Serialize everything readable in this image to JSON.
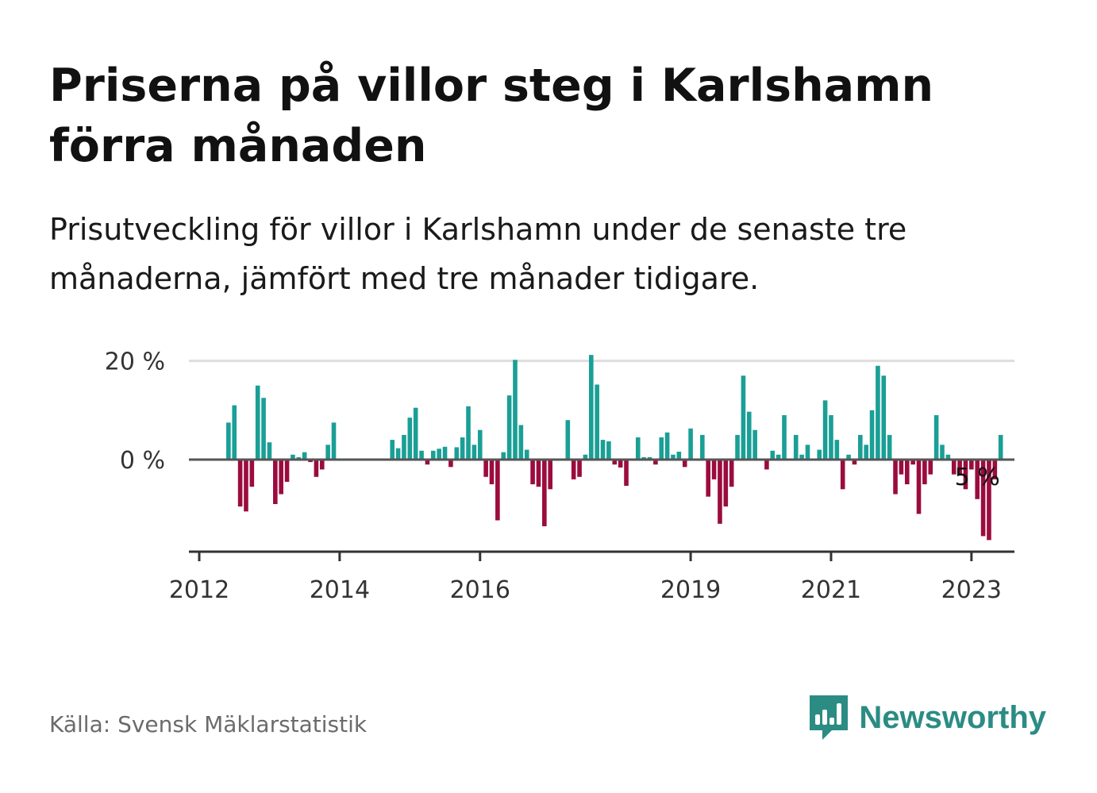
{
  "title": "Priserna på villor steg i Karlshamn förra månaden",
  "subtitle": "Prisutveckling för villor i Karlshamn under de senaste tre månaderna, jämfört med tre månader tidigare.",
  "source": "Källa: Svensk Mäklarstatistik",
  "brand": {
    "name": "Newsworthy",
    "icon": "newsworthy-logo-icon"
  },
  "colors": {
    "positive": "#1a9f96",
    "negative": "#9b0c3e",
    "gridline": "#dddddd",
    "baseline": "#555555"
  },
  "chart_data": {
    "type": "bar",
    "title": "",
    "xlabel": "",
    "ylabel": "",
    "ylim": [
      -19,
      20
    ],
    "yticks": [
      {
        "value": 0,
        "label": "0 %"
      },
      {
        "value": 20,
        "label": "20 %"
      }
    ],
    "xticks": [
      {
        "label": "2012",
        "index": 0
      },
      {
        "label": "2014",
        "index": 24
      },
      {
        "label": "2016",
        "index": 48
      },
      {
        "label": "2019",
        "index": 84
      },
      {
        "label": "2021",
        "index": 108
      },
      {
        "label": "2023",
        "index": 132
      }
    ],
    "x_start": "2012-01",
    "annotation": {
      "text": "5 %",
      "index": 133
    },
    "values": [
      null,
      null,
      null,
      null,
      null,
      7.5,
      11,
      -9.5,
      -10.5,
      -5.5,
      15,
      12.5,
      3.5,
      -9,
      -7,
      -4.5,
      1,
      0.5,
      1.5,
      -0.5,
      -3.5,
      -2,
      3,
      7.5,
      null,
      null,
      null,
      null,
      null,
      null,
      null,
      null,
      null,
      4,
      2.3,
      5,
      8.5,
      10.5,
      1.8,
      -1,
      1.8,
      2.2,
      2.6,
      -1.5,
      2.5,
      4.5,
      10.8,
      3,
      6,
      -3.5,
      -5,
      -12.3,
      1.5,
      13,
      20.2,
      7,
      2,
      -5,
      -5.5,
      -13.5,
      -6,
      null,
      null,
      8,
      -4,
      -3.5,
      1,
      21.2,
      15.2,
      4,
      3.7,
      -1,
      -1.6,
      -5.3,
      null,
      4.5,
      0.5,
      0.5,
      -1,
      4.5,
      5.5,
      1,
      1.6,
      -1.5,
      6.3,
      null,
      5,
      -7.5,
      -4,
      -13,
      -9.5,
      -5.5,
      5,
      17,
      9.7,
      6,
      null,
      -2,
      1.8,
      1,
      9,
      null,
      5,
      1,
      3,
      null,
      2,
      12,
      9,
      4,
      -6,
      1,
      -1,
      5,
      3,
      10,
      19,
      17,
      5,
      -7,
      -3,
      -5,
      -1,
      -11,
      -5,
      -3,
      9,
      3,
      1,
      -3,
      -3,
      -6,
      -2,
      -8,
      -15.5,
      -16.3,
      -4,
      5
    ]
  }
}
